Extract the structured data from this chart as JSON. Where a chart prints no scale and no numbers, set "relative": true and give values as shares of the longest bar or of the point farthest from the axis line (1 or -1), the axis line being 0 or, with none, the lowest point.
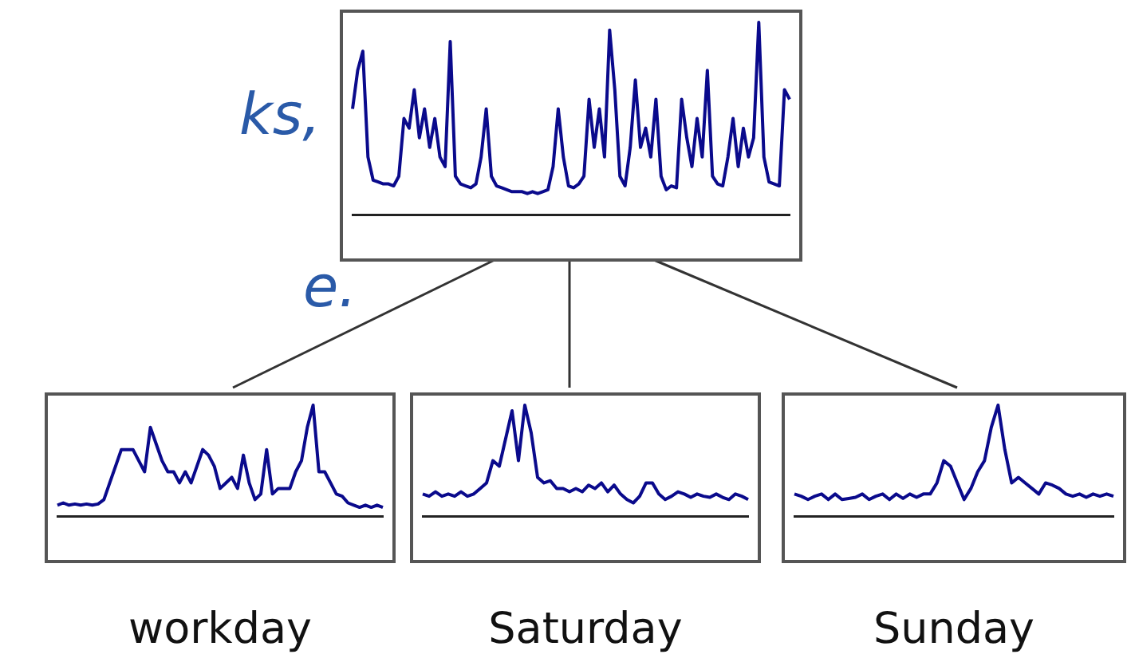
{
  "chart_data": [
    {
      "type": "line",
      "relative": true,
      "grid": false,
      "legend": false,
      "marker": "none",
      "line_style": "solid",
      "annotations": [
        "ks,",
        "e."
      ],
      "categories": [
        null,
        null,
        null,
        null,
        null,
        null,
        null,
        null,
        null,
        null,
        null,
        null,
        null,
        null,
        null,
        null,
        null,
        null,
        null,
        null,
        null,
        null,
        null,
        null,
        null,
        null,
        null,
        null,
        null,
        null,
        null,
        null,
        null,
        null,
        null,
        null,
        null,
        null,
        null,
        null,
        null,
        null,
        null,
        null,
        null,
        null,
        null,
        null,
        null,
        null,
        null,
        null,
        null,
        null,
        null,
        null,
        null,
        null,
        null,
        null,
        null,
        null,
        null,
        null,
        null,
        null,
        null,
        null,
        null,
        null,
        null,
        null,
        null,
        null,
        null,
        null,
        null,
        null,
        null,
        null,
        null,
        null,
        null,
        null,
        null,
        null
      ],
      "series": [
        {
          "color": "#0a0a8c",
          "values": [
            0.55,
            0.75,
            0.85,
            0.3,
            0.18,
            0.17,
            0.16,
            0.16,
            0.15,
            0.2,
            0.5,
            0.45,
            0.65,
            0.4,
            0.55,
            0.35,
            0.5,
            0.3,
            0.25,
            0.9,
            0.2,
            0.16,
            0.15,
            0.14,
            0.16,
            0.3,
            0.55,
            0.2,
            0.15,
            0.14,
            0.13,
            0.12,
            0.12,
            0.12,
            0.11,
            0.12,
            0.11,
            0.12,
            0.13,
            0.25,
            0.55,
            0.3,
            0.15,
            0.14,
            0.16,
            0.2,
            0.6,
            0.35,
            0.55,
            0.3,
            0.96,
            0.65,
            0.2,
            0.15,
            0.35,
            0.7,
            0.35,
            0.45,
            0.3,
            0.6,
            0.2,
            0.13,
            0.15,
            0.14,
            0.6,
            0.4,
            0.25,
            0.5,
            0.3,
            0.75,
            0.2,
            0.16,
            0.15,
            0.3,
            0.5,
            0.25,
            0.45,
            0.3,
            0.4,
            1,
            0.3,
            0.17,
            0.16,
            0.15,
            0.65,
            0.6
          ]
        }
      ]
    },
    {
      "type": "line",
      "relative": true,
      "grid": false,
      "legend": false,
      "marker": "none",
      "line_style": "solid",
      "xlabel": "workday",
      "categories": [
        null,
        null,
        null,
        null,
        null,
        null,
        null,
        null,
        null,
        null,
        null,
        null,
        null,
        null,
        null,
        null,
        null,
        null,
        null,
        null,
        null,
        null,
        null,
        null,
        null,
        null,
        null,
        null,
        null,
        null,
        null,
        null,
        null,
        null,
        null,
        null,
        null,
        null,
        null,
        null,
        null,
        null,
        null,
        null,
        null,
        null,
        null,
        null,
        null,
        null,
        null,
        null,
        null,
        null,
        null,
        null,
        null
      ],
      "series": [
        {
          "color": "#0a0a8c",
          "values": [
            0.1,
            0.12,
            0.1,
            0.11,
            0.1,
            0.11,
            0.1,
            0.11,
            0.15,
            0.3,
            0.45,
            0.6,
            0.6,
            0.6,
            0.5,
            0.4,
            0.8,
            0.65,
            0.5,
            0.4,
            0.4,
            0.3,
            0.4,
            0.3,
            0.45,
            0.6,
            0.55,
            0.45,
            0.25,
            0.3,
            0.35,
            0.25,
            0.55,
            0.3,
            0.15,
            0.2,
            0.6,
            0.2,
            0.25,
            0.25,
            0.25,
            0.4,
            0.5,
            0.8,
            1,
            0.4,
            0.4,
            0.3,
            0.2,
            0.18,
            0.12,
            0.1,
            0.08,
            0.1,
            0.08,
            0.1,
            0.08
          ]
        }
      ]
    },
    {
      "type": "line",
      "relative": true,
      "grid": false,
      "legend": false,
      "marker": "none",
      "line_style": "solid",
      "xlabel": "Saturday",
      "categories": [
        null,
        null,
        null,
        null,
        null,
        null,
        null,
        null,
        null,
        null,
        null,
        null,
        null,
        null,
        null,
        null,
        null,
        null,
        null,
        null,
        null,
        null,
        null,
        null,
        null,
        null,
        null,
        null,
        null,
        null,
        null,
        null,
        null,
        null,
        null,
        null,
        null,
        null,
        null,
        null,
        null,
        null,
        null,
        null,
        null,
        null,
        null,
        null,
        null,
        null,
        null,
        null
      ],
      "series": [
        {
          "color": "#0a0a8c",
          "values": [
            0.2,
            0.18,
            0.22,
            0.18,
            0.2,
            0.18,
            0.22,
            0.18,
            0.2,
            0.25,
            0.3,
            0.5,
            0.45,
            0.7,
            0.95,
            0.5,
            1,
            0.75,
            0.35,
            0.3,
            0.32,
            0.25,
            0.25,
            0.22,
            0.25,
            0.22,
            0.28,
            0.25,
            0.3,
            0.22,
            0.28,
            0.2,
            0.15,
            0.12,
            0.18,
            0.3,
            0.3,
            0.2,
            0.15,
            0.18,
            0.22,
            0.2,
            0.17,
            0.2,
            0.18,
            0.17,
            0.2,
            0.17,
            0.15,
            0.2,
            0.18,
            0.15
          ]
        }
      ]
    },
    {
      "type": "line",
      "relative": true,
      "grid": false,
      "legend": false,
      "marker": "none",
      "line_style": "solid",
      "xlabel": "Sunday",
      "categories": [
        null,
        null,
        null,
        null,
        null,
        null,
        null,
        null,
        null,
        null,
        null,
        null,
        null,
        null,
        null,
        null,
        null,
        null,
        null,
        null,
        null,
        null,
        null,
        null,
        null,
        null,
        null,
        null,
        null,
        null,
        null,
        null,
        null,
        null,
        null,
        null,
        null,
        null,
        null,
        null,
        null,
        null,
        null,
        null,
        null,
        null,
        null,
        null
      ],
      "series": [
        {
          "color": "#0a0a8c",
          "values": [
            0.2,
            0.18,
            0.15,
            0.18,
            0.2,
            0.15,
            0.2,
            0.15,
            0.16,
            0.17,
            0.2,
            0.15,
            0.18,
            0.2,
            0.15,
            0.2,
            0.16,
            0.2,
            0.17,
            0.2,
            0.2,
            0.3,
            0.5,
            0.45,
            0.3,
            0.15,
            0.25,
            0.4,
            0.5,
            0.8,
            1,
            0.6,
            0.3,
            0.35,
            0.3,
            0.25,
            0.2,
            0.3,
            0.28,
            0.25,
            0.2,
            0.18,
            0.2,
            0.17,
            0.2,
            0.18,
            0.2,
            0.18
          ]
        }
      ]
    }
  ]
}
